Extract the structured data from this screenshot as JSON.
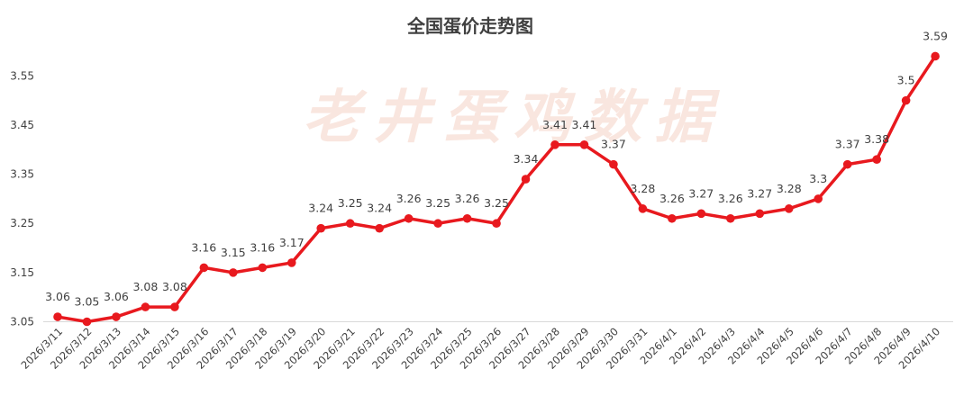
{
  "watermark": "老井蛋鸡数据",
  "colors": {
    "line": "#e8191e",
    "axis": "#d9d9d9",
    "text": "#404040"
  },
  "chart_data": {
    "type": "line",
    "title": "全国蛋价走势图",
    "xlabel": "",
    "ylabel": "",
    "ylim": [
      3.05,
      3.6
    ],
    "yticks": [
      "3.05",
      "3.15",
      "3.25",
      "3.35",
      "3.45",
      "3.55"
    ],
    "grid": false,
    "categories": [
      "2026/3/11",
      "2026/3/12",
      "2026/3/13",
      "2026/3/14",
      "2026/3/15",
      "2026/3/16",
      "2026/3/17",
      "2026/3/18",
      "2026/3/19",
      "2026/3/20",
      "2026/3/21",
      "2026/3/22",
      "2026/3/23",
      "2026/3/24",
      "2026/3/25",
      "2026/3/26",
      "2026/3/27",
      "2026/3/28",
      "2026/3/29",
      "2026/3/30",
      "2026/3/31",
      "2026/4/1",
      "2026/4/2",
      "2026/4/3",
      "2026/4/4",
      "2026/4/5",
      "2026/4/6",
      "2026/4/7",
      "2026/4/8",
      "2026/4/9",
      "2026/4/10"
    ],
    "values": [
      3.06,
      3.05,
      3.06,
      3.08,
      3.08,
      3.16,
      3.15,
      3.16,
      3.17,
      3.24,
      3.25,
      3.24,
      3.26,
      3.25,
      3.26,
      3.25,
      3.34,
      3.41,
      3.41,
      3.37,
      3.28,
      3.26,
      3.27,
      3.26,
      3.27,
      3.28,
      3.3,
      3.37,
      3.38,
      3.5,
      3.59
    ],
    "labels": [
      "3.06",
      "3.05",
      "3.06",
      "3.08",
      "3.08",
      "3.16",
      "3.15",
      "3.16",
      "3.17",
      "3.24",
      "3.25",
      "3.24",
      "3.26",
      "3.25",
      "3.26",
      "3.25",
      "3.34",
      "3.41",
      "3.41",
      "3.37",
      "3.28",
      "3.26",
      "3.27",
      "3.26",
      "3.27",
      "3.28",
      "3.3",
      "3.37",
      "3.38",
      "3.5",
      "3.59"
    ]
  }
}
